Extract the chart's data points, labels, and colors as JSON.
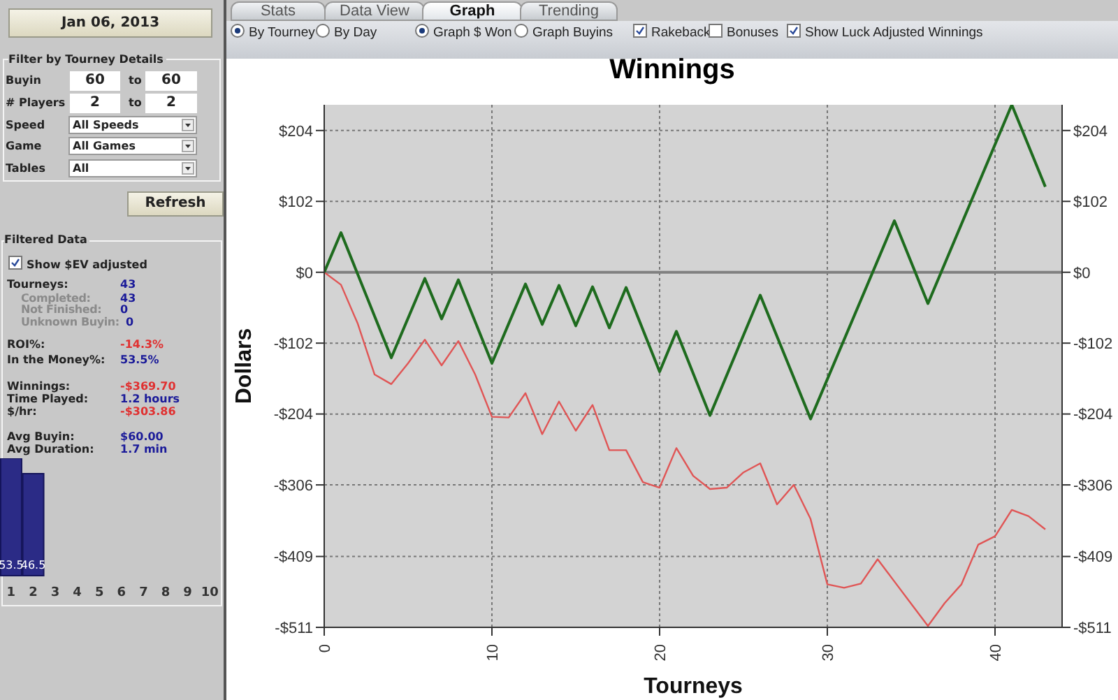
{
  "chart_data": [
    {
      "type": "other",
      "annotations": [
        "Jan 06, 2013",
        "Filter by Tourney Details",
        "Buyin",
        "60",
        "to",
        "60",
        "# Players",
        "2",
        "to",
        "2",
        "Speed",
        "All Speeds",
        "Game",
        "All Games",
        "Tables",
        "All",
        "Refresh",
        "Filtered Data",
        "Show $EV adjusted",
        "Tourneys:",
        "43",
        "Completed:",
        "43",
        "Not Finished:",
        "0",
        "Unknown Buyin:",
        "0",
        "ROI%:",
        "-14.3%",
        "In the Money%:",
        "53.5%",
        "Winnings:",
        "-$369.70",
        "Time Played:",
        "1.2 hours",
        "$/hr:",
        "-$303.86",
        "Avg Buyin:",
        "$60.00",
        "Avg Duration:",
        "1.7 min",
        "Stats",
        "Data View",
        "Graph",
        "Trending",
        "By Tourney",
        "By Day",
        "Graph $ Won",
        "Graph Buyins",
        "Rakeback",
        "Bonuses",
        "Show Luck Adjusted Winnings"
      ]
    },
    {
      "type": "bar",
      "categories": [
        "1",
        "2",
        "3",
        "4",
        "5",
        "6",
        "7",
        "8",
        "9",
        "10"
      ],
      "values": [
        53.5,
        46.5,
        null,
        null,
        null,
        null,
        null,
        null,
        null,
        null
      ],
      "color": "#2b2b86",
      "data_labels": true
    },
    {
      "type": "line",
      "title": "Winnings",
      "xlabel": "Tourneys",
      "ylabel": "Dollars",
      "xlim": [
        0,
        44
      ],
      "xticks": [
        0,
        10,
        20,
        30,
        40
      ],
      "ylim": [
        -511,
        241
      ],
      "yticks": [
        {
          "value": -511,
          "label": "-$511"
        },
        {
          "value": -409,
          "label": "-$409"
        },
        {
          "value": -306,
          "label": "-$306"
        },
        {
          "value": -204,
          "label": "-$204"
        },
        {
          "value": -102,
          "label": "-$102"
        },
        {
          "value": 0,
          "label": "$0"
        },
        {
          "value": 102,
          "label": "$102"
        },
        {
          "value": 204,
          "label": "$204"
        }
      ],
      "y2lim": [
        -511,
        241
      ],
      "y2ticks": [
        {
          "value": -511,
          "label": "-$511"
        },
        {
          "value": -409,
          "label": "-$409"
        },
        {
          "value": -306,
          "label": "-$306"
        },
        {
          "value": -204,
          "label": "-$204"
        },
        {
          "value": -102,
          "label": "-$102"
        },
        {
          "value": 0,
          "label": "$0"
        },
        {
          "value": 102,
          "label": "$102"
        },
        {
          "value": 204,
          "label": "$204"
        }
      ],
      "grid": true,
      "ref_lines": [
        {
          "axis": "y",
          "value": 0,
          "color": "#808080"
        }
      ],
      "series": [
        {
          "color": "#e05555",
          "x": [
            0,
            1,
            2,
            3,
            4,
            5,
            6,
            7,
            8,
            9,
            10,
            11,
            12,
            13,
            14,
            15,
            16,
            17,
            18,
            19,
            20,
            21,
            22,
            23,
            24,
            25,
            26,
            27,
            28,
            29,
            30,
            31,
            32,
            33,
            34,
            35,
            36,
            37,
            38,
            39,
            40,
            41,
            42,
            43
          ],
          "values": [
            0,
            -18,
            -74,
            -147,
            -161,
            -131,
            -97,
            -134,
            -99,
            -147,
            -208,
            -209,
            -174,
            -233,
            -186,
            -228,
            -191,
            -256,
            -256,
            -302,
            -310,
            -253,
            -293,
            -312,
            -310,
            -288,
            -275,
            -334,
            -306,
            -355,
            -449,
            -454,
            -448,
            -413,
            -445,
            -477,
            -509,
            -476,
            -449,
            -392,
            -380,
            -342,
            -351,
            -370
          ]
        },
        {
          "color": "#1e6b1e",
          "x": [
            0,
            1,
            4,
            6,
            7,
            8,
            10,
            12,
            13,
            14,
            15,
            16,
            17,
            18,
            20,
            21,
            23,
            26,
            29,
            34,
            36,
            41,
            43
          ],
          "values": [
            0,
            57,
            -123,
            -9,
            -67,
            -11,
            -131,
            -17,
            -75,
            -19,
            -77,
            -21,
            -80,
            -22,
            -143,
            -85,
            -206,
            -33,
            -211,
            74,
            -45,
            241,
            123
          ]
        }
      ]
    }
  ]
}
